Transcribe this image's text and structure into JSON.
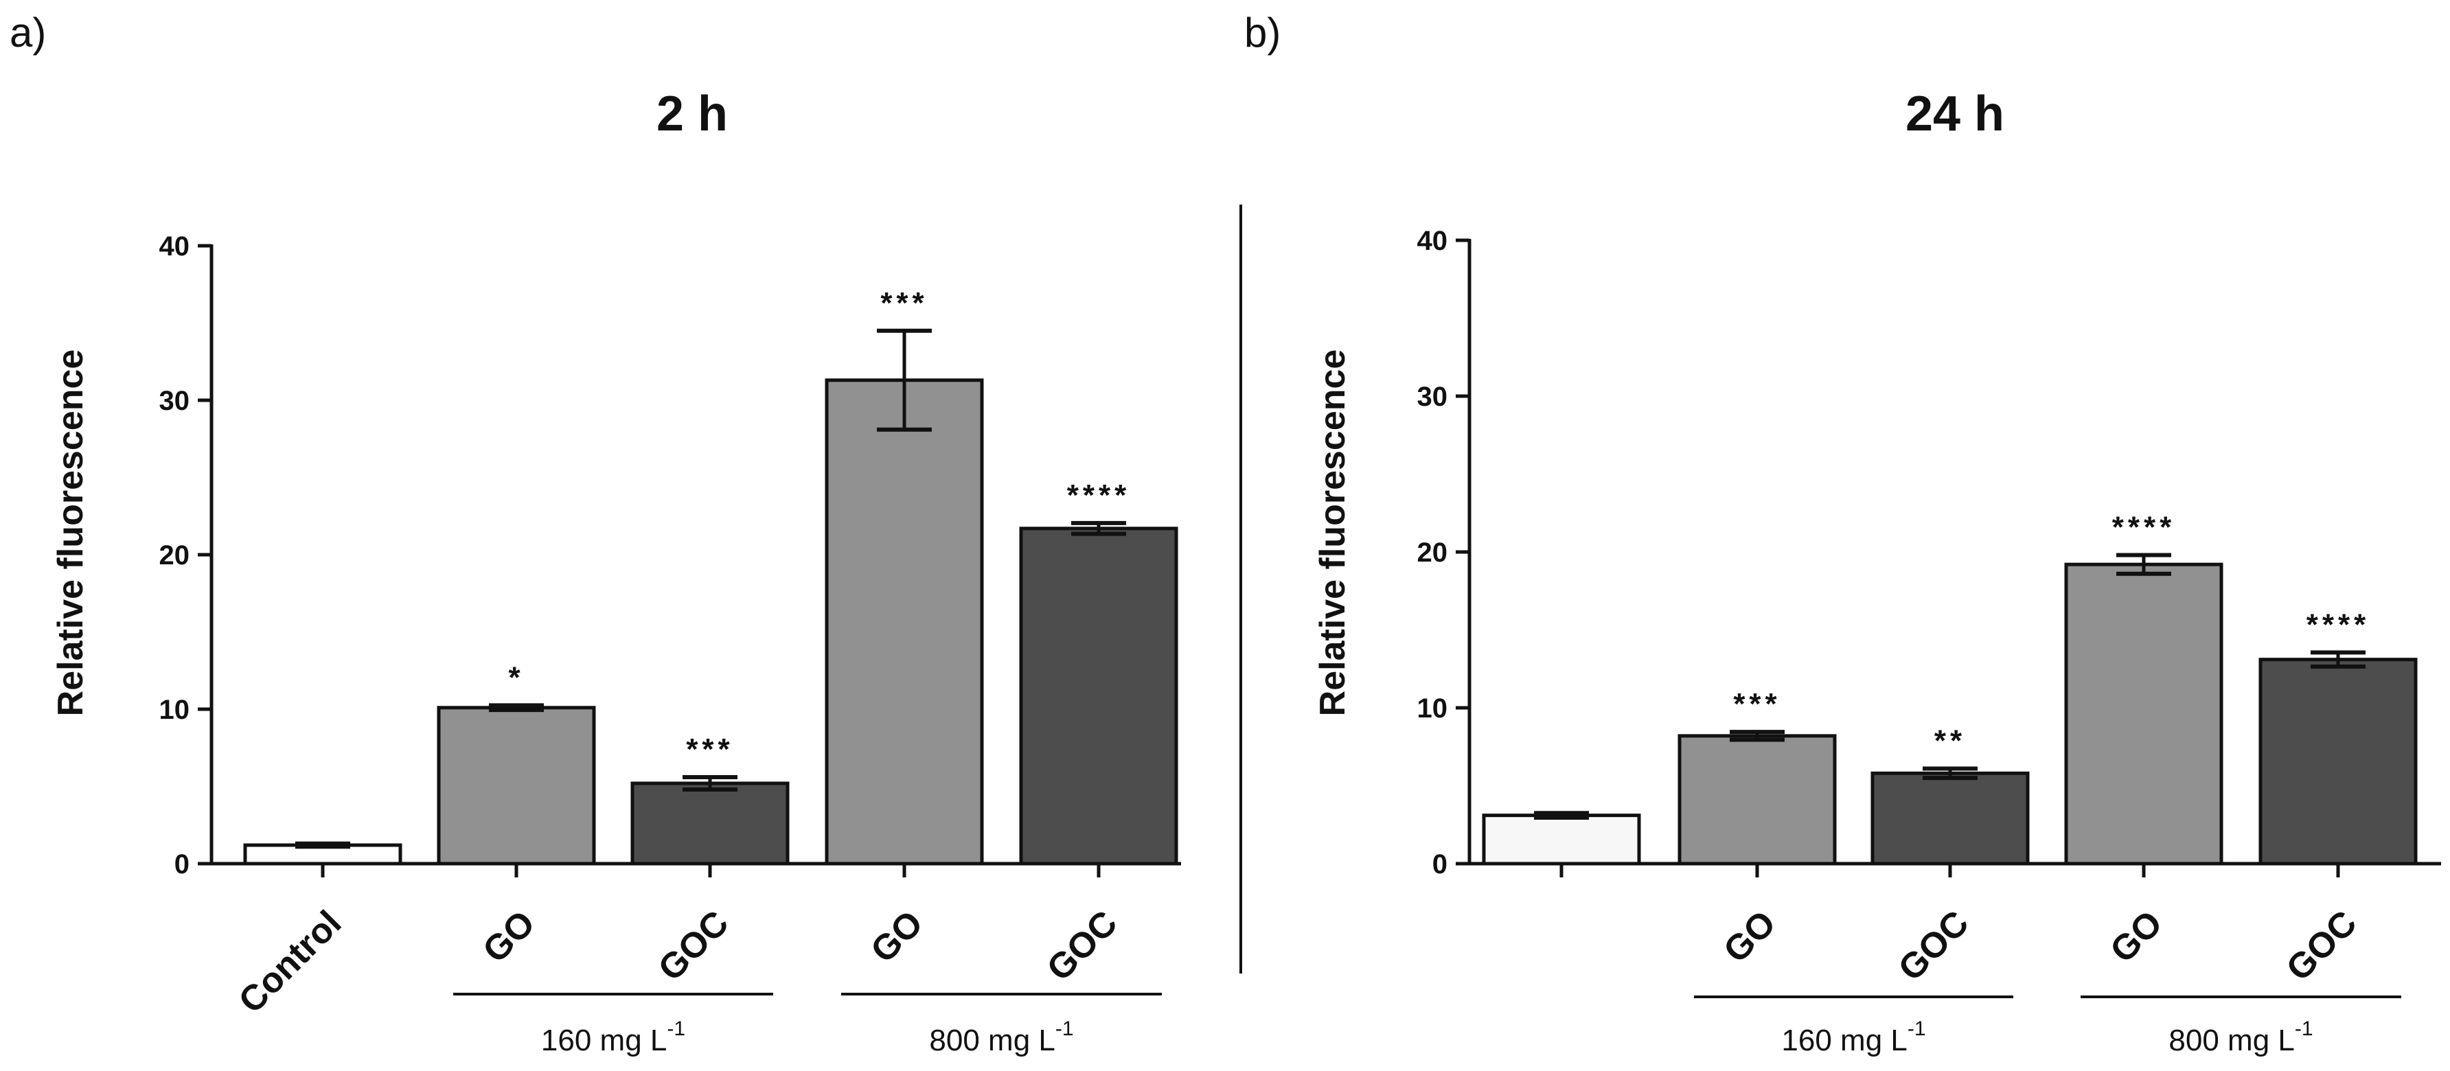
{
  "chart_data": [
    {
      "panel": "a)",
      "type": "bar",
      "title": "2 h",
      "xlabel": "",
      "ylabel": "Relative fluorescence",
      "ylim": [
        0,
        40
      ],
      "yticks": [
        0,
        10,
        20,
        30,
        40
      ],
      "categories": [
        "Control",
        "GO",
        "GOC",
        "GO",
        "GOC"
      ],
      "values": [
        1.2,
        10.1,
        5.2,
        31.3,
        21.7
      ],
      "errors": [
        0.1,
        0.15,
        0.4,
        3.2,
        0.35
      ],
      "significance": [
        "",
        "*",
        "***",
        "***",
        "****"
      ],
      "colors": [
        "#ffffff",
        "#919191",
        "#4d4d4d",
        "#919191",
        "#4d4d4d"
      ],
      "groups": [
        {
          "label": "160 mg L",
          "superscript": "-1",
          "categories": [
            1,
            2
          ]
        },
        {
          "label": "800 mg L",
          "superscript": "-1",
          "categories": [
            3,
            4
          ]
        }
      ]
    },
    {
      "panel": "b)",
      "type": "bar",
      "title": "24 h",
      "xlabel": "",
      "ylabel": "Relative fluorescence",
      "ylim": [
        0,
        40
      ],
      "yticks": [
        0,
        10,
        20,
        30,
        40
      ],
      "categories": [
        "",
        "GO",
        "GOC",
        "GO",
        "GOC"
      ],
      "values": [
        3.1,
        8.2,
        5.8,
        19.2,
        13.1
      ],
      "errors": [
        0.15,
        0.25,
        0.3,
        0.6,
        0.45
      ],
      "significance": [
        "",
        "***",
        "**",
        "****",
        "****"
      ],
      "colors": [
        "#f7f7f7",
        "#919191",
        "#4d4d4d",
        "#919191",
        "#4d4d4d"
      ],
      "groups": [
        {
          "label": "160 mg L",
          "superscript": "-1",
          "categories": [
            1,
            2
          ]
        },
        {
          "label": "800 mg L",
          "superscript": "-1",
          "categories": [
            3,
            4
          ]
        }
      ]
    }
  ]
}
